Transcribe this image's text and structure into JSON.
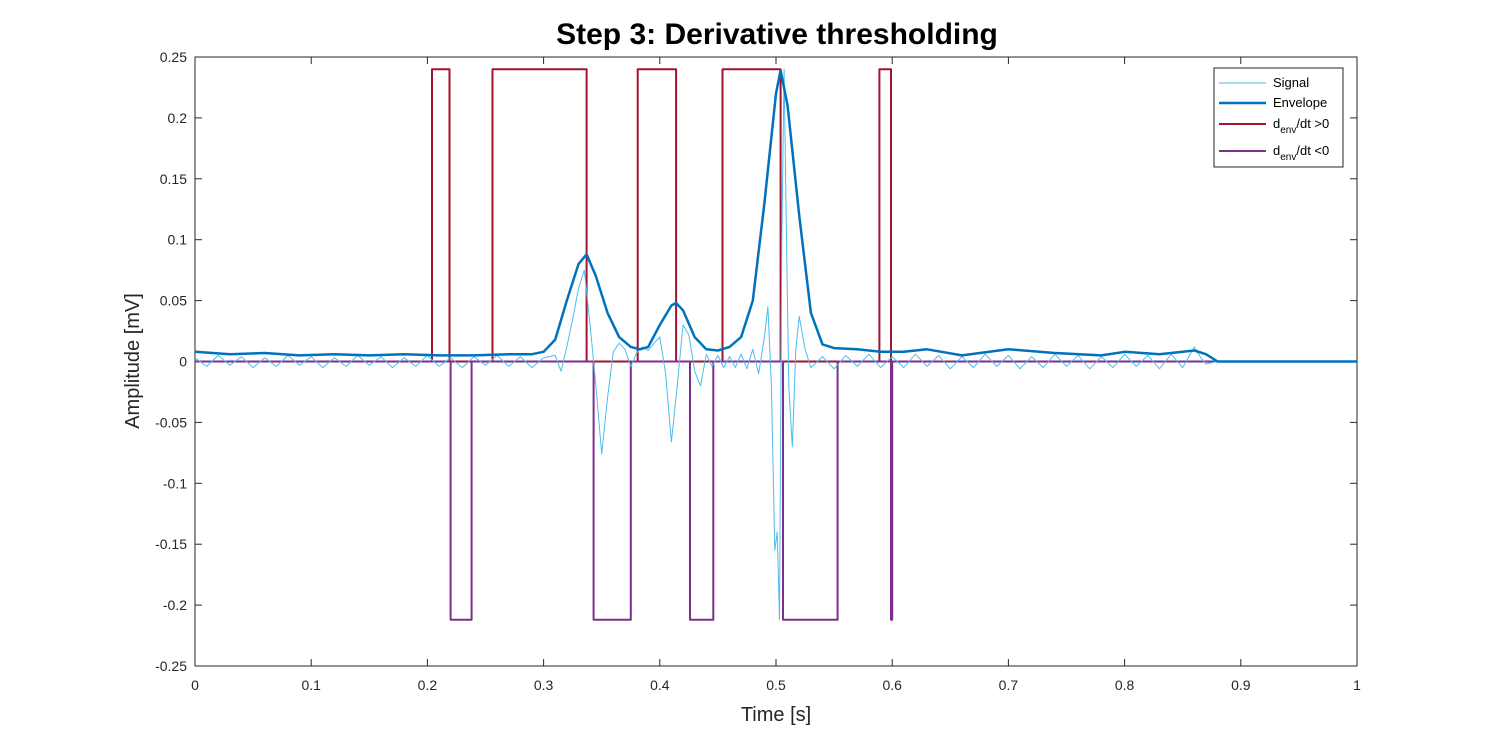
{
  "chart_data": {
    "type": "line",
    "title": "Step 3: Derivative thresholding",
    "xlabel": "Time [s]",
    "ylabel": "Amplitude [mV]",
    "xlim": [
      0,
      1
    ],
    "ylim": [
      -0.25,
      0.25
    ],
    "xticks": [
      0,
      0.1,
      0.2,
      0.3,
      0.4,
      0.5,
      0.6,
      0.7,
      0.8,
      0.9,
      1
    ],
    "xtick_labels": [
      "0",
      "0.1",
      "0.2",
      "0.3",
      "0.4",
      "0.5",
      "0.6",
      "0.7",
      "0.8",
      "0.9",
      "1"
    ],
    "yticks": [
      -0.25,
      -0.2,
      -0.15,
      -0.1,
      -0.05,
      0,
      0.05,
      0.1,
      0.15,
      0.2,
      0.25
    ],
    "ytick_labels": [
      "-0.25",
      "-0.2",
      "-0.15",
      "-0.1",
      "-0.05",
      "0",
      "0.05",
      "0.1",
      "0.15",
      "0.2",
      "0.25"
    ],
    "grid": false,
    "legend_position": "top-right",
    "series": [
      {
        "name": "Signal",
        "color": "#4DBEEE",
        "points": [
          [
            0,
            0.003
          ],
          [
            0.01,
            -0.004
          ],
          [
            0.02,
            0.005
          ],
          [
            0.03,
            -0.003
          ],
          [
            0.04,
            0.004
          ],
          [
            0.05,
            -0.005
          ],
          [
            0.06,
            0.003
          ],
          [
            0.07,
            -0.004
          ],
          [
            0.08,
            0.005
          ],
          [
            0.09,
            -0.003
          ],
          [
            0.1,
            0.004
          ],
          [
            0.11,
            -0.005
          ],
          [
            0.12,
            0.003
          ],
          [
            0.13,
            -0.004
          ],
          [
            0.14,
            0.005
          ],
          [
            0.15,
            -0.003
          ],
          [
            0.16,
            0.004
          ],
          [
            0.17,
            -0.005
          ],
          [
            0.18,
            0.003
          ],
          [
            0.19,
            -0.004
          ],
          [
            0.2,
            0.005
          ],
          [
            0.21,
            -0.004
          ],
          [
            0.22,
            0.003
          ],
          [
            0.23,
            -0.005
          ],
          [
            0.24,
            0.004
          ],
          [
            0.25,
            -0.003
          ],
          [
            0.26,
            0.005
          ],
          [
            0.27,
            -0.004
          ],
          [
            0.28,
            0.004
          ],
          [
            0.29,
            -0.005
          ],
          [
            0.3,
            0.003
          ],
          [
            0.31,
            0.005
          ],
          [
            0.315,
            -0.008
          ],
          [
            0.32,
            0.012
          ],
          [
            0.325,
            0.035
          ],
          [
            0.33,
            0.06
          ],
          [
            0.335,
            0.075
          ],
          [
            0.34,
            0.03
          ],
          [
            0.345,
            -0.02
          ],
          [
            0.35,
            -0.076
          ],
          [
            0.355,
            -0.03
          ],
          [
            0.36,
            0.008
          ],
          [
            0.365,
            0.015
          ],
          [
            0.37,
            0.01
          ],
          [
            0.375,
            -0.004
          ],
          [
            0.38,
            0.007
          ],
          [
            0.385,
            0.012
          ],
          [
            0.39,
            0.009
          ],
          [
            0.395,
            0.015
          ],
          [
            0.4,
            0.02
          ],
          [
            0.405,
            -0.01
          ],
          [
            0.41,
            -0.066
          ],
          [
            0.415,
            -0.02
          ],
          [
            0.42,
            0.03
          ],
          [
            0.425,
            0.022
          ],
          [
            0.43,
            -0.008
          ],
          [
            0.435,
            -0.02
          ],
          [
            0.44,
            0.006
          ],
          [
            0.445,
            -0.004
          ],
          [
            0.45,
            0.005
          ],
          [
            0.455,
            -0.005
          ],
          [
            0.46,
            0.004
          ],
          [
            0.465,
            -0.005
          ],
          [
            0.47,
            0.006
          ],
          [
            0.475,
            -0.006
          ],
          [
            0.48,
            0.01
          ],
          [
            0.485,
            -0.01
          ],
          [
            0.49,
            0.02
          ],
          [
            0.493,
            0.045
          ],
          [
            0.496,
            -0.02
          ],
          [
            0.499,
            -0.155
          ],
          [
            0.501,
            -0.14
          ],
          [
            0.503,
            -0.212
          ],
          [
            0.505,
            0.1
          ],
          [
            0.507,
            0.24
          ],
          [
            0.509,
            0.1
          ],
          [
            0.511,
            -0.02
          ],
          [
            0.514,
            -0.07
          ],
          [
            0.517,
            0.01
          ],
          [
            0.52,
            0.037
          ],
          [
            0.525,
            0.01
          ],
          [
            0.53,
            -0.005
          ],
          [
            0.54,
            0.004
          ],
          [
            0.55,
            -0.006
          ],
          [
            0.56,
            0.005
          ],
          [
            0.57,
            -0.004
          ],
          [
            0.58,
            0.006
          ],
          [
            0.59,
            -0.005
          ],
          [
            0.6,
            0.004
          ],
          [
            0.61,
            -0.005
          ],
          [
            0.62,
            0.006
          ],
          [
            0.63,
            -0.004
          ],
          [
            0.64,
            0.005
          ],
          [
            0.65,
            -0.006
          ],
          [
            0.66,
            0.004
          ],
          [
            0.67,
            -0.005
          ],
          [
            0.68,
            0.006
          ],
          [
            0.69,
            -0.004
          ],
          [
            0.7,
            0.005
          ],
          [
            0.71,
            -0.006
          ],
          [
            0.72,
            0.004
          ],
          [
            0.73,
            -0.005
          ],
          [
            0.74,
            0.006
          ],
          [
            0.75,
            -0.004
          ],
          [
            0.76,
            0.005
          ],
          [
            0.77,
            -0.006
          ],
          [
            0.78,
            0.004
          ],
          [
            0.79,
            -0.005
          ],
          [
            0.8,
            0.006
          ],
          [
            0.81,
            -0.004
          ],
          [
            0.82,
            0.005
          ],
          [
            0.83,
            -0.006
          ],
          [
            0.84,
            0.006
          ],
          [
            0.85,
            -0.005
          ],
          [
            0.86,
            0.012
          ],
          [
            0.865,
            0.004
          ],
          [
            0.87,
            -0.002
          ],
          [
            0.88,
            0
          ],
          [
            1,
            0
          ]
        ]
      },
      {
        "name": "Envelope",
        "color": "#0072BD",
        "points": [
          [
            0,
            0.008
          ],
          [
            0.03,
            0.006
          ],
          [
            0.06,
            0.007
          ],
          [
            0.09,
            0.005
          ],
          [
            0.12,
            0.006
          ],
          [
            0.15,
            0.005
          ],
          [
            0.18,
            0.006
          ],
          [
            0.21,
            0.005
          ],
          [
            0.24,
            0.005
          ],
          [
            0.27,
            0.006
          ],
          [
            0.29,
            0.006
          ],
          [
            0.3,
            0.008
          ],
          [
            0.31,
            0.018
          ],
          [
            0.32,
            0.05
          ],
          [
            0.33,
            0.08
          ],
          [
            0.337,
            0.088
          ],
          [
            0.345,
            0.07
          ],
          [
            0.355,
            0.04
          ],
          [
            0.365,
            0.02
          ],
          [
            0.375,
            0.012
          ],
          [
            0.383,
            0.01
          ],
          [
            0.39,
            0.012
          ],
          [
            0.4,
            0.03
          ],
          [
            0.41,
            0.046
          ],
          [
            0.414,
            0.048
          ],
          [
            0.42,
            0.042
          ],
          [
            0.43,
            0.02
          ],
          [
            0.44,
            0.01
          ],
          [
            0.45,
            0.009
          ],
          [
            0.46,
            0.012
          ],
          [
            0.47,
            0.02
          ],
          [
            0.48,
            0.05
          ],
          [
            0.49,
            0.13
          ],
          [
            0.5,
            0.22
          ],
          [
            0.504,
            0.239
          ],
          [
            0.51,
            0.21
          ],
          [
            0.52,
            0.12
          ],
          [
            0.53,
            0.04
          ],
          [
            0.54,
            0.014
          ],
          [
            0.55,
            0.011
          ],
          [
            0.57,
            0.01
          ],
          [
            0.59,
            0.008
          ],
          [
            0.61,
            0.008
          ],
          [
            0.63,
            0.01
          ],
          [
            0.66,
            0.005
          ],
          [
            0.7,
            0.01
          ],
          [
            0.74,
            0.007
          ],
          [
            0.78,
            0.005
          ],
          [
            0.8,
            0.008
          ],
          [
            0.83,
            0.006
          ],
          [
            0.86,
            0.009
          ],
          [
            0.87,
            0.006
          ],
          [
            0.88,
            0
          ],
          [
            1,
            0
          ]
        ]
      },
      {
        "name": "d_env/dt >0",
        "color": "#A2142F",
        "points": [
          [
            0,
            0
          ],
          [
            0.204,
            0
          ],
          [
            0.204,
            0.24
          ],
          [
            0.219,
            0.24
          ],
          [
            0.219,
            0
          ],
          [
            0.256,
            0
          ],
          [
            0.256,
            0.24
          ],
          [
            0.337,
            0.24
          ],
          [
            0.337,
            0
          ],
          [
            0.381,
            0
          ],
          [
            0.381,
            0.24
          ],
          [
            0.414,
            0.24
          ],
          [
            0.414,
            0
          ],
          [
            0.454,
            0
          ],
          [
            0.454,
            0.24
          ],
          [
            0.504,
            0.24
          ],
          [
            0.504,
            0
          ],
          [
            0.589,
            0
          ],
          [
            0.589,
            0.24
          ],
          [
            0.599,
            0.24
          ],
          [
            0.599,
            0
          ],
          [
            1,
            0
          ]
        ]
      },
      {
        "name": "d_env/dt <0",
        "color": "#7E2F8E",
        "points": [
          [
            0,
            0
          ],
          [
            0.22,
            0
          ],
          [
            0.22,
            -0.212
          ],
          [
            0.238,
            -0.212
          ],
          [
            0.238,
            0
          ],
          [
            0.343,
            0
          ],
          [
            0.343,
            -0.212
          ],
          [
            0.375,
            -0.212
          ],
          [
            0.375,
            0
          ],
          [
            0.426,
            0
          ],
          [
            0.426,
            -0.212
          ],
          [
            0.446,
            -0.212
          ],
          [
            0.446,
            0
          ],
          [
            0.506,
            0
          ],
          [
            0.506,
            -0.212
          ],
          [
            0.553,
            -0.212
          ],
          [
            0.553,
            0
          ],
          [
            0.599,
            0
          ],
          [
            0.599,
            -0.212
          ],
          [
            0.6,
            -0.212
          ],
          [
            0.6,
            0
          ],
          [
            1,
            0
          ]
        ]
      }
    ],
    "legend": [
      {
        "label": "Signal"
      },
      {
        "label": "Envelope"
      },
      {
        "label_main": "d",
        "label_sub": "env",
        "label_rest": "/dt >0"
      },
      {
        "label_main": "d",
        "label_sub": "env",
        "label_rest": "/dt <0"
      }
    ]
  }
}
